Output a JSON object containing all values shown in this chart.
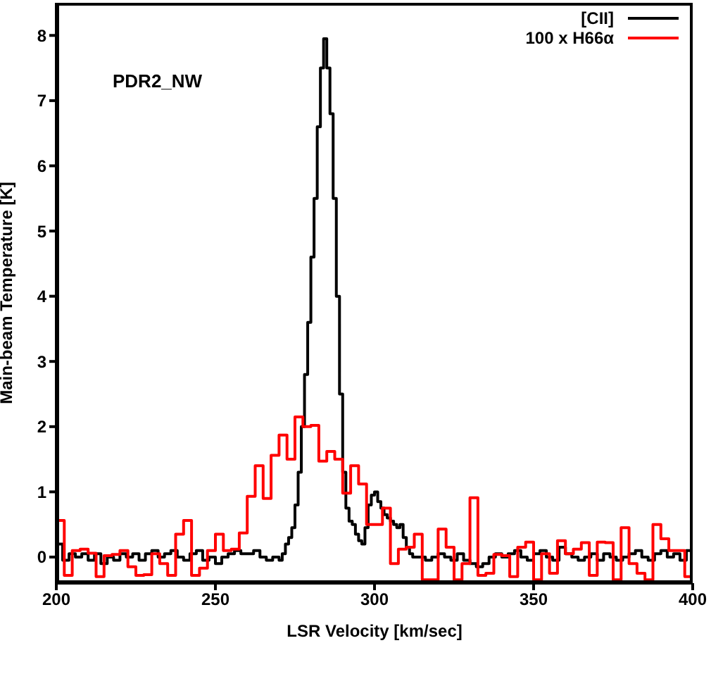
{
  "chart_data": {
    "type": "step",
    "xlabel": "LSR Velocity [km/sec]",
    "ylabel": "Main-beam Temperature [K]",
    "annotations": [
      "PDR2_NW"
    ],
    "xlim": [
      200,
      400
    ],
    "xticks": [
      200,
      250,
      300,
      350,
      400
    ],
    "ylim": [
      -0.4,
      8.5
    ],
    "yticks": [
      0,
      1,
      2,
      3,
      4,
      5,
      6,
      7,
      8
    ],
    "legend": "top right",
    "line_style": "solid",
    "marker": "none",
    "series": [
      {
        "name": "[CII]",
        "color": "#000000",
        "x": [
          200,
          202,
          204,
          206,
          208,
          210,
          212,
          214,
          216,
          218,
          220,
          222,
          224,
          226,
          228,
          230,
          232,
          234,
          236,
          238,
          240,
          242,
          244,
          246,
          248,
          250,
          252,
          254,
          256,
          258,
          260,
          262,
          264,
          266,
          268,
          270,
          271,
          272,
          273,
          274,
          275,
          276,
          277,
          278,
          279,
          280,
          281,
          282,
          283,
          284,
          285,
          286,
          287,
          288,
          289,
          290,
          291,
          292,
          293,
          294,
          295,
          296,
          297,
          298,
          299,
          300,
          301,
          302,
          303,
          304,
          305,
          306,
          307,
          308,
          309,
          310,
          311,
          312,
          314,
          316,
          318,
          320,
          322,
          324,
          326,
          328,
          330,
          332,
          334,
          336,
          338,
          340,
          342,
          344,
          346,
          348,
          350,
          352,
          354,
          356,
          358,
          360,
          362,
          364,
          366,
          368,
          370,
          372,
          374,
          376,
          378,
          380,
          382,
          384,
          386,
          388,
          390,
          392,
          394,
          396,
          398,
          400
        ],
        "values": [
          0.2,
          -0.05,
          0.05,
          0,
          0.05,
          -0.05,
          0.05,
          -0.1,
          0,
          -0.05,
          0.05,
          0,
          0.05,
          -0.05,
          0.05,
          0.1,
          0,
          0.05,
          0.1,
          0,
          -0.05,
          0.05,
          0.1,
          -0.05,
          0,
          -0.1,
          0,
          0.05,
          0.1,
          0.05,
          0.05,
          0.1,
          0,
          -0.05,
          0,
          -0.05,
          0.05,
          0.2,
          0.3,
          0.45,
          0.8,
          1.3,
          2,
          2.8,
          3.6,
          4.6,
          5.5,
          6.6,
          7.5,
          7.95,
          7.5,
          6.8,
          5.5,
          4,
          2.5,
          1.3,
          0.75,
          0.55,
          0.5,
          0.35,
          0.25,
          0.2,
          0.45,
          0.8,
          0.95,
          1,
          0.85,
          0.75,
          0.65,
          0.6,
          0.55,
          0.5,
          0.45,
          0.5,
          0.3,
          0.15,
          0.05,
          0,
          0,
          -0.05,
          0,
          0.05,
          0,
          -0.05,
          0.05,
          -0.05,
          -0.1,
          -0.15,
          -0.1,
          0,
          0.05,
          0,
          0.05,
          0.1,
          0,
          -0.05,
          0.05,
          0.1,
          0,
          -0.05,
          0.15,
          0.05,
          0,
          -0.05,
          0,
          0.05,
          -0.05,
          0.05,
          0,
          -0.05,
          0,
          0.05,
          0.1,
          0,
          -0.05,
          0.05,
          0.1,
          0,
          0.05,
          -0.05,
          0.1,
          0
        ]
      },
      {
        "name": "100 x H66α",
        "color": "#ff0000",
        "x": [
          200,
          202.5,
          205,
          207.5,
          210,
          212.5,
          215,
          217.5,
          220,
          222.5,
          225,
          227.5,
          230,
          232.5,
          235,
          237.5,
          240,
          242.5,
          245,
          247.5,
          250,
          252.5,
          255,
          257.5,
          260,
          262.5,
          265,
          267.5,
          270,
          272.5,
          275,
          277.5,
          280,
          282.5,
          285,
          287.5,
          290,
          292.5,
          295,
          297.5,
          300,
          302.5,
          305,
          307.5,
          310,
          312.5,
          315,
          317.5,
          320,
          322.5,
          325,
          327.5,
          330,
          332.5,
          335,
          337.5,
          340,
          342.5,
          345,
          347.5,
          350,
          352.5,
          355,
          357.5,
          360,
          362.5,
          365,
          367.5,
          370,
          372.5,
          375,
          377.5,
          380,
          382.5,
          385,
          387.5,
          390,
          392.5,
          395,
          397.5,
          400
        ],
        "values": [
          0.56,
          -0.28,
          0.1,
          0.12,
          0.06,
          -0.3,
          0.02,
          0.04,
          0.1,
          -0.15,
          -0.28,
          -0.27,
          0.05,
          -0.1,
          -0.28,
          0.35,
          0.56,
          -0.28,
          -0.17,
          0.1,
          0.35,
          0.1,
          0.12,
          0.37,
          0.93,
          1.4,
          0.9,
          1.56,
          1.87,
          1.5,
          2.15,
          2,
          2.02,
          1.47,
          1.62,
          1.5,
          0.98,
          1.4,
          1.12,
          0.5,
          0.5,
          0.75,
          -0.1,
          0.12,
          0.15,
          0.35,
          -0.35,
          -0.35,
          0.43,
          0.15,
          -0.35,
          -0.1,
          0.91,
          -0.28,
          -0.25,
          0.04,
          0.02,
          -0.3,
          0.15,
          0.23,
          -0.35,
          0.05,
          -0.25,
          0.25,
          0.05,
          0.12,
          0.22,
          -0.28,
          0.23,
          0.22,
          -0.35,
          0.45,
          -0.1,
          -0.25,
          -0.35,
          0.5,
          0.28,
          0.1,
          0.1,
          -0.3,
          -0.3
        ]
      }
    ]
  }
}
